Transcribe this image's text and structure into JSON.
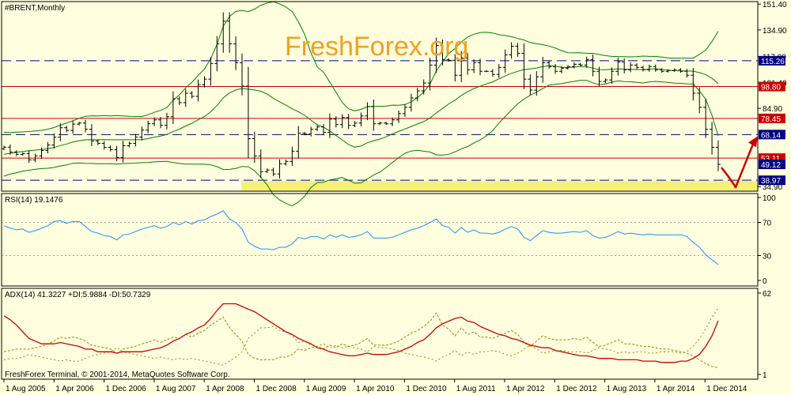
{
  "watermark": "FreshForex.org",
  "footer": "FreshForex Terminal, © 2001-2014, MetaQuotes Software Corp.",
  "colors": {
    "background": "#ffffe0",
    "bars": "#000000",
    "bollinger": "#008000",
    "resistance": "#cc0000",
    "support_dashed": "#000080",
    "rsi": "#1e90ff",
    "adx": "#cc0000",
    "plus_di": "#8b8b00",
    "minus_di": "#8b8b00",
    "highlight": "#f5f06a",
    "arrow": "#cc0000"
  },
  "chart_data": [
    {
      "type": "ohlc",
      "header": "#BRENT,Monthly",
      "symbol": "#BRENT",
      "timeframe": "Monthly",
      "x_labels": [
        "1 Aug 2005",
        "1 Apr 2006",
        "1 Dec 2006",
        "1 Aug 2007",
        "1 Apr 2008",
        "1 Dec 2008",
        "1 Aug 2009",
        "1 Apr 2010",
        "1 Dec 2010",
        "1 Aug 2011",
        "1 Apr 2012",
        "1 Dec 2012",
        "1 Aug 2013",
        "1 Apr 2014",
        "1 Dec 2014"
      ],
      "y_ticks": [
        151.4,
        134.9,
        117.9,
        101.4,
        84.9,
        34.9
      ],
      "ylim": [
        32.0,
        153.0
      ],
      "close": [
        60.1,
        57.0,
        55.5,
        56.0,
        52.0,
        54.5,
        58.0,
        61.5,
        66.5,
        72.5,
        70.8,
        74.8,
        75.5,
        71.5,
        64.0,
        62.5,
        60.0,
        58.5,
        53.5,
        61.0,
        62.5,
        66.5,
        71.0,
        75.0,
        77.5,
        74.0,
        79.5,
        91.0,
        88.5,
        94.5,
        92.5,
        100.0,
        103.5,
        113.5,
        126.0,
        140.5,
        126.0,
        114.0,
        99.0,
        65.5,
        54.5,
        44.5,
        45.5,
        43.0,
        49.5,
        51.0,
        57.5,
        69.0,
        68.5,
        71.5,
        73.0,
        69.5,
        78.0,
        74.5,
        79.0,
        74.0,
        75.5,
        80.0,
        86.0,
        75.0,
        75.5,
        75.0,
        77.5,
        81.5,
        85.5,
        91.5,
        96.0,
        101.0,
        112.5,
        125.0,
        116.0,
        115.5,
        106.0,
        117.0,
        109.5,
        114.0,
        108.5,
        108.5,
        106.5,
        111.0,
        119.0,
        124.5,
        120.0,
        103.5,
        96.5,
        105.0,
        114.0,
        111.5,
        108.5,
        110.5,
        111.5,
        113.0,
        112.5,
        116.0,
        108.5,
        102.0,
        103.0,
        108.5,
        114.5,
        109.5,
        112.5,
        111.0,
        109.5,
        111.5,
        109.5,
        108.5,
        109.0,
        109.5,
        108.5,
        106.0,
        94.5,
        85.5,
        71.5,
        60.0,
        49.12
      ],
      "bollinger": {
        "upper": [
          69.6,
          69.4,
          69.7,
          69.8,
          70.1,
          70.4,
          70.8,
          71.6,
          72.6,
          74.1,
          75.5,
          76.9,
          78.5,
          79.8,
          80.1,
          80.0,
          80.3,
          80.0,
          80.3,
          80.0,
          79.8,
          79.7,
          79.6,
          80.8,
          82.3,
          83.6,
          85.4,
          90.0,
          93.5,
          97.9,
          101.5,
          105.9,
          110.0,
          116.6,
          125.5,
          137.2,
          143.5,
          146.7,
          147.3,
          146.6,
          148.2,
          150.7,
          152.1,
          152.9,
          151.5,
          149.5,
          146.6,
          140.1,
          132.0,
          120.3,
          111.3,
          108.0,
          101.7,
          95.1,
          88.6,
          84.6,
          83.2,
          84.2,
          86.0,
          86.1,
          86.2,
          86.3,
          86.9,
          86.8,
          87.3,
          89.0,
          91.7,
          95.3,
          100.4,
          108.7,
          114.5,
          119.8,
          123.1,
          127.2,
          130.4,
          132.2,
          133.3,
          133.4,
          133.0,
          131.9,
          131.3,
          130.6,
          129.4,
          128.5,
          126.9,
          126.1,
          125.5,
          124.6,
          123.3,
          121.7,
          120.4,
          120.3,
          120.4,
          120.0,
          120.0,
          119.2,
          118.5,
          118.0,
          117.9,
          117.8,
          117.7,
          117.8,
          118.2,
          118.0,
          118.0,
          117.6,
          117.0,
          116.9,
          116.9,
          116.9,
          116.9,
          119.3,
          122.1,
          127.5,
          134.1
        ],
        "middle": [
          55.6,
          56.1,
          56.8,
          57.3,
          57.8,
          58.2,
          58.6,
          59.1,
          59.9,
          61.1,
          62.1,
          63.4,
          64.2,
          64.8,
          64.9,
          64.8,
          64.9,
          64.8,
          64.8,
          64.8,
          64.8,
          64.8,
          64.9,
          65.6,
          66.5,
          67.2,
          68.2,
          70.1,
          71.6,
          73.6,
          75.4,
          77.6,
          79.6,
          82.7,
          86.6,
          91.5,
          94.7,
          96.6,
          97.6,
          97.1,
          96.6,
          95.8,
          94.0,
          91.3,
          89.0,
          86.9,
          84.6,
          82.6,
          80.4,
          77.3,
          74.4,
          72.9,
          70.4,
          67.5,
          64.7,
          61.8,
          60.1,
          60.8,
          62.9,
          64.2,
          65.2,
          66.7,
          68.6,
          70.1,
          71.7,
          73.3,
          74.9,
          76.4,
          78.7,
          81.9,
          84.8,
          87.7,
          90.1,
          93.1,
          95.5,
          97.5,
          99.0,
          100.4,
          101.8,
          103.7,
          105.5,
          107.2,
          108.5,
          109.6,
          110.0,
          110.6,
          111.5,
          112.1,
          111.7,
          111.1,
          110.9,
          111.2,
          111.6,
          111.4,
          110.5,
          109.6,
          109.5,
          109.8,
          110.1,
          109.9,
          109.8,
          109.6,
          109.6,
          109.9,
          110.1,
          109.7,
          109.2,
          108.9,
          108.8,
          108.7,
          108.6,
          107.7,
          106.4,
          104.0,
          100.7
        ],
        "lower": [
          41.6,
          42.9,
          43.8,
          44.8,
          45.4,
          46.0,
          46.4,
          46.6,
          47.2,
          48.1,
          48.8,
          49.8,
          50.0,
          49.8,
          49.7,
          49.5,
          49.5,
          49.6,
          49.3,
          49.6,
          49.8,
          49.9,
          50.2,
          50.3,
          50.7,
          50.9,
          51.0,
          50.3,
          49.7,
          49.3,
          49.3,
          49.3,
          49.2,
          48.8,
          47.7,
          45.8,
          45.9,
          46.5,
          47.8,
          47.6,
          45.0,
          40.8,
          36.0,
          29.8,
          26.4,
          24.3,
          22.6,
          25.1,
          28.8,
          34.3,
          37.5,
          37.7,
          39.2,
          39.9,
          40.7,
          38.9,
          37.1,
          37.3,
          39.8,
          42.3,
          44.2,
          47.1,
          50.3,
          53.4,
          56.2,
          57.6,
          58.1,
          57.5,
          57.0,
          55.2,
          55.0,
          55.6,
          57.1,
          59.0,
          60.5,
          62.8,
          64.7,
          67.3,
          70.6,
          75.5,
          79.6,
          83.9,
          87.7,
          90.8,
          93.2,
          95.2,
          97.5,
          99.6,
          100.2,
          100.6,
          101.4,
          102.1,
          102.8,
          102.8,
          101.1,
          99.9,
          100.5,
          101.6,
          102.4,
          102.0,
          101.9,
          101.5,
          101.0,
          101.8,
          102.1,
          101.8,
          101.4,
          100.9,
          100.8,
          100.5,
          100.4,
          96.1,
          90.7,
          80.4,
          67.3
        ]
      },
      "levels": [
        {
          "value": 115.26,
          "label": "115.26",
          "style": "dashed",
          "color": "#000080"
        },
        {
          "value": 98.8,
          "label": "98.80",
          "style": "solid",
          "color": "#cc0000"
        },
        {
          "value": 78.45,
          "label": "78.45",
          "style": "solid",
          "color": "#cc0000"
        },
        {
          "value": 68.14,
          "label": "68.14",
          "style": "dashed",
          "color": "#000080"
        },
        {
          "value": 53.11,
          "label": "53.11",
          "style": "solid",
          "color": "#cc0000"
        },
        {
          "value": 38.97,
          "label": "38.97",
          "style": "dashed",
          "color": "#000080"
        }
      ],
      "current_price": {
        "value": 49.12,
        "label": "49.12"
      },
      "highlight_zone": [
        34.9,
        38.97
      ],
      "annotation": "red check-mark arrow: dip below ~38 then rally toward 68.14"
    },
    {
      "type": "line",
      "header": "RSI(14) 19.1476",
      "series": [
        {
          "name": "RSI(14)",
          "last": 19.1476
        }
      ],
      "y_ticks": [
        100,
        70,
        30,
        0
      ],
      "levels": [
        70,
        30
      ],
      "ylim": [
        0,
        100
      ],
      "values": [
        66,
        63,
        61,
        62,
        58,
        60,
        63,
        66,
        71,
        72,
        69,
        71,
        71,
        65,
        59,
        57,
        54,
        53,
        49,
        55,
        56,
        59,
        62,
        64,
        66,
        63,
        65,
        70,
        67,
        71,
        68,
        72,
        73,
        77,
        80,
        84,
        74,
        70,
        62,
        46,
        41,
        38,
        38,
        37,
        40,
        40,
        44,
        52,
        50,
        53,
        53,
        50,
        55,
        52,
        55,
        52,
        53,
        55,
        59,
        51,
        51,
        51,
        52,
        55,
        58,
        61,
        63,
        66,
        70,
        74,
        66,
        64,
        57,
        64,
        58,
        61,
        57,
        57,
        56,
        58,
        62,
        65,
        62,
        52,
        48,
        54,
        60,
        58,
        57,
        57,
        58,
        59,
        58,
        60,
        54,
        51,
        52,
        55,
        59,
        56,
        57,
        56,
        55,
        56,
        55,
        55,
        55,
        55,
        55,
        53,
        46,
        40,
        31,
        25,
        19.15
      ]
    },
    {
      "type": "line",
      "header": "ADX(14) 41.3227 +DI:5.9884 -DI:50.7329",
      "y_ticks": [
        62,
        1
      ],
      "ylim": [
        1,
        62
      ],
      "series": [
        {
          "name": "ADX(14)",
          "last": 41.3227,
          "values": [
            45,
            42,
            38,
            33,
            28,
            26,
            24,
            24,
            24,
            25,
            24,
            23,
            22,
            20,
            20,
            18,
            18,
            18,
            17,
            18,
            18,
            18,
            18,
            19,
            20,
            21,
            23,
            26,
            28,
            31,
            33,
            36,
            38,
            43,
            49,
            54,
            54,
            54,
            52,
            50,
            48,
            45,
            42,
            39,
            36,
            33,
            31,
            28,
            26,
            24,
            21,
            20,
            18,
            17,
            16,
            15,
            15,
            16,
            17,
            16,
            16,
            16,
            17,
            18,
            20,
            22,
            25,
            27,
            31,
            36,
            39,
            41,
            43,
            44,
            41,
            40,
            37,
            35,
            33,
            31,
            30,
            28,
            27,
            25,
            23,
            22,
            21,
            21,
            19,
            18,
            17,
            16,
            15,
            15,
            14,
            13,
            13,
            13,
            12,
            12,
            12,
            12,
            11,
            11,
            11,
            10,
            10,
            10,
            11,
            11,
            13,
            16,
            22,
            30,
            41.32
          ]
        },
        {
          "name": "+DI",
          "last": 5.9884,
          "values": [
            18,
            19,
            20,
            20,
            20,
            21,
            22,
            24,
            26,
            29,
            28,
            29,
            28,
            26,
            23,
            22,
            21,
            20,
            17,
            20,
            21,
            22,
            24,
            25,
            27,
            25,
            27,
            29,
            28,
            31,
            29,
            32,
            34,
            38,
            41,
            44,
            36,
            31,
            26,
            16,
            13,
            12,
            12,
            12,
            14,
            14,
            16,
            20,
            19,
            21,
            22,
            20,
            23,
            21,
            24,
            22,
            23,
            25,
            28,
            23,
            23,
            23,
            24,
            26,
            29,
            32,
            34,
            37,
            41,
            47,
            38,
            35,
            30,
            36,
            31,
            33,
            29,
            29,
            28,
            30,
            32,
            34,
            31,
            25,
            22,
            26,
            30,
            28,
            27,
            27,
            27,
            28,
            27,
            29,
            25,
            22,
            23,
            25,
            27,
            24,
            24,
            23,
            22,
            22,
            21,
            20,
            20,
            19,
            18,
            17,
            15,
            12,
            9,
            7,
            5.99
          ]
        },
        {
          "name": "-DI",
          "last": 50.7329,
          "values": [
            12,
            13,
            13,
            14,
            16,
            15,
            14,
            13,
            12,
            11,
            12,
            11,
            11,
            13,
            15,
            16,
            17,
            18,
            21,
            18,
            17,
            16,
            15,
            14,
            13,
            14,
            13,
            12,
            13,
            12,
            13,
            12,
            11,
            10,
            9,
            8,
            11,
            14,
            18,
            28,
            32,
            36,
            36,
            37,
            34,
            33,
            30,
            25,
            26,
            23,
            22,
            24,
            21,
            23,
            21,
            22,
            21,
            20,
            18,
            22,
            21,
            21,
            20,
            19,
            17,
            16,
            15,
            14,
            13,
            11,
            14,
            16,
            19,
            15,
            18,
            16,
            18,
            18,
            19,
            18,
            16,
            15,
            17,
            20,
            23,
            20,
            17,
            18,
            19,
            19,
            18,
            18,
            18,
            17,
            19,
            21,
            20,
            19,
            17,
            18,
            17,
            18,
            18,
            17,
            17,
            18,
            18,
            18,
            17,
            18,
            22,
            28,
            35,
            44,
            50.73
          ]
        }
      ]
    }
  ]
}
